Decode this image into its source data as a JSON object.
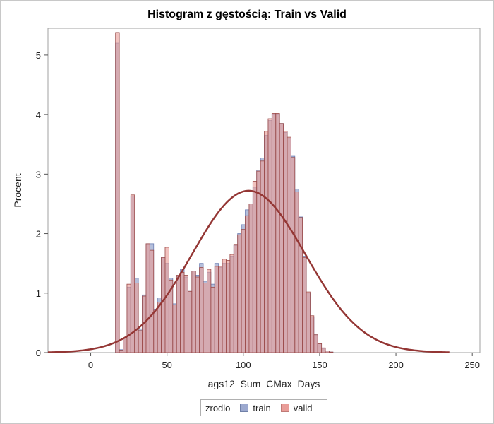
{
  "chart_data": {
    "type": "histogram",
    "title": "Histogram z gęstością: Train vs Valid",
    "xlabel": "ags12_Sum_CMax_Days",
    "ylabel": "Procent",
    "xlim": [
      -28,
      255
    ],
    "ylim": [
      0,
      5.45
    ],
    "x_ticks": [
      0,
      50,
      100,
      150,
      200,
      250
    ],
    "y_ticks": [
      0,
      1,
      2,
      3,
      4,
      5
    ],
    "bin_width": 2.5,
    "legend": {
      "title": "zrodlo",
      "position": "bottom-center",
      "entries": [
        {
          "name": "train",
          "color": "#9ca9cf"
        },
        {
          "name": "valid",
          "color": "#e99d98"
        }
      ]
    },
    "series": [
      {
        "name": "train",
        "color": "#7c8fc4",
        "bins": [
          {
            "x": 17.5,
            "y": 5.2
          },
          {
            "x": 20,
            "y": 0.05
          },
          {
            "x": 22.5,
            "y": 0.25
          },
          {
            "x": 25,
            "y": 1.1
          },
          {
            "x": 27.5,
            "y": 2.63
          },
          {
            "x": 30,
            "y": 1.25
          },
          {
            "x": 32.5,
            "y": 0.4
          },
          {
            "x": 35,
            "y": 0.97
          },
          {
            "x": 37.5,
            "y": 1.83
          },
          {
            "x": 40,
            "y": 1.83
          },
          {
            "x": 42.5,
            "y": 0.73
          },
          {
            "x": 45,
            "y": 0.92
          },
          {
            "x": 47.5,
            "y": 1.6
          },
          {
            "x": 50,
            "y": 1.5
          },
          {
            "x": 52.5,
            "y": 1.25
          },
          {
            "x": 55,
            "y": 0.82
          },
          {
            "x": 57.5,
            "y": 1.28
          },
          {
            "x": 60,
            "y": 1.4
          },
          {
            "x": 62.5,
            "y": 1.27
          },
          {
            "x": 65,
            "y": 1.03
          },
          {
            "x": 67.5,
            "y": 1.37
          },
          {
            "x": 70,
            "y": 1.3
          },
          {
            "x": 72.5,
            "y": 1.5
          },
          {
            "x": 75,
            "y": 1.2
          },
          {
            "x": 77.5,
            "y": 1.35
          },
          {
            "x": 80,
            "y": 1.15
          },
          {
            "x": 82.5,
            "y": 1.5
          },
          {
            "x": 85,
            "y": 1.43
          },
          {
            "x": 87.5,
            "y": 1.5
          },
          {
            "x": 90,
            "y": 1.5
          },
          {
            "x": 92.5,
            "y": 1.62
          },
          {
            "x": 95,
            "y": 1.8
          },
          {
            "x": 97.5,
            "y": 2.0
          },
          {
            "x": 100,
            "y": 2.15
          },
          {
            "x": 102.5,
            "y": 2.4
          },
          {
            "x": 105,
            "y": 2.5
          },
          {
            "x": 107.5,
            "y": 2.78
          },
          {
            "x": 110,
            "y": 3.07
          },
          {
            "x": 112.5,
            "y": 3.27
          },
          {
            "x": 115,
            "y": 3.65
          },
          {
            "x": 117.5,
            "y": 3.9
          },
          {
            "x": 120,
            "y": 4.0
          },
          {
            "x": 122.5,
            "y": 4.0
          },
          {
            "x": 125,
            "y": 3.85
          },
          {
            "x": 127.5,
            "y": 3.7
          },
          {
            "x": 130,
            "y": 3.6
          },
          {
            "x": 132.5,
            "y": 3.3
          },
          {
            "x": 135,
            "y": 2.75
          },
          {
            "x": 137.5,
            "y": 2.28
          },
          {
            "x": 140,
            "y": 1.62
          },
          {
            "x": 142.5,
            "y": 1.0
          },
          {
            "x": 145,
            "y": 0.6
          },
          {
            "x": 147.5,
            "y": 0.3
          },
          {
            "x": 150,
            "y": 0.15
          },
          {
            "x": 152.5,
            "y": 0.07
          },
          {
            "x": 155,
            "y": 0.03
          },
          {
            "x": 157.5,
            "y": 0.01
          }
        ]
      },
      {
        "name": "valid",
        "color": "#d98c88",
        "bins": [
          {
            "x": 17.5,
            "y": 5.38
          },
          {
            "x": 20,
            "y": 0.04
          },
          {
            "x": 22.5,
            "y": 0.25
          },
          {
            "x": 25,
            "y": 1.15
          },
          {
            "x": 27.5,
            "y": 2.65
          },
          {
            "x": 30,
            "y": 1.17
          },
          {
            "x": 32.5,
            "y": 0.37
          },
          {
            "x": 35,
            "y": 0.95
          },
          {
            "x": 37.5,
            "y": 1.83
          },
          {
            "x": 40,
            "y": 1.72
          },
          {
            "x": 42.5,
            "y": 0.72
          },
          {
            "x": 45,
            "y": 0.85
          },
          {
            "x": 47.5,
            "y": 1.6
          },
          {
            "x": 50,
            "y": 1.77
          },
          {
            "x": 52.5,
            "y": 1.22
          },
          {
            "x": 55,
            "y": 0.8
          },
          {
            "x": 57.5,
            "y": 1.3
          },
          {
            "x": 60,
            "y": 1.35
          },
          {
            "x": 62.5,
            "y": 1.3
          },
          {
            "x": 65,
            "y": 1.03
          },
          {
            "x": 67.5,
            "y": 1.37
          },
          {
            "x": 70,
            "y": 1.27
          },
          {
            "x": 72.5,
            "y": 1.43
          },
          {
            "x": 75,
            "y": 1.17
          },
          {
            "x": 77.5,
            "y": 1.4
          },
          {
            "x": 80,
            "y": 1.1
          },
          {
            "x": 82.5,
            "y": 1.45
          },
          {
            "x": 85,
            "y": 1.45
          },
          {
            "x": 87.5,
            "y": 1.57
          },
          {
            "x": 90,
            "y": 1.55
          },
          {
            "x": 92.5,
            "y": 1.65
          },
          {
            "x": 95,
            "y": 1.82
          },
          {
            "x": 97.5,
            "y": 1.98
          },
          {
            "x": 100,
            "y": 2.07
          },
          {
            "x": 102.5,
            "y": 2.3
          },
          {
            "x": 105,
            "y": 2.5
          },
          {
            "x": 107.5,
            "y": 2.88
          },
          {
            "x": 110,
            "y": 3.05
          },
          {
            "x": 112.5,
            "y": 3.22
          },
          {
            "x": 115,
            "y": 3.72
          },
          {
            "x": 117.5,
            "y": 3.93
          },
          {
            "x": 120,
            "y": 4.02
          },
          {
            "x": 122.5,
            "y": 4.02
          },
          {
            "x": 125,
            "y": 3.85
          },
          {
            "x": 127.5,
            "y": 3.72
          },
          {
            "x": 130,
            "y": 3.62
          },
          {
            "x": 132.5,
            "y": 3.28
          },
          {
            "x": 135,
            "y": 2.7
          },
          {
            "x": 137.5,
            "y": 2.27
          },
          {
            "x": 140,
            "y": 1.6
          },
          {
            "x": 142.5,
            "y": 1.02
          },
          {
            "x": 145,
            "y": 0.62
          },
          {
            "x": 147.5,
            "y": 0.3
          },
          {
            "x": 150,
            "y": 0.15
          },
          {
            "x": 152.5,
            "y": 0.08
          },
          {
            "x": 155,
            "y": 0.03
          },
          {
            "x": 157.5,
            "y": 0.01
          }
        ]
      }
    ],
    "density_curve": {
      "type": "normal",
      "color": "#943634",
      "mean": 103.5,
      "sd": 37.2,
      "peak": 2.72,
      "x_range": [
        -28,
        235
      ]
    }
  }
}
